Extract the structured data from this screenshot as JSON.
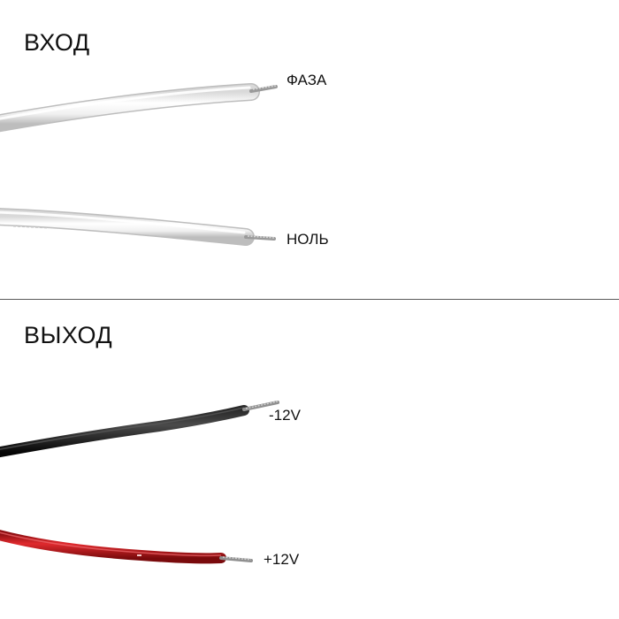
{
  "input_section": {
    "title": "ВХОД",
    "wires": [
      {
        "label": "ФАЗА"
      },
      {
        "label": "НОЛЬ"
      }
    ]
  },
  "output_section": {
    "title": "ВЫХОД",
    "wires": [
      {
        "label": "-12V"
      },
      {
        "label": "+12V"
      }
    ]
  },
  "colors": {
    "input_wire": "#f4f4f4",
    "negative_wire": "#111111",
    "positive_wire": "#c4161c",
    "copper_strand": "#b9b9b9",
    "divider": "#5a5a5a"
  }
}
